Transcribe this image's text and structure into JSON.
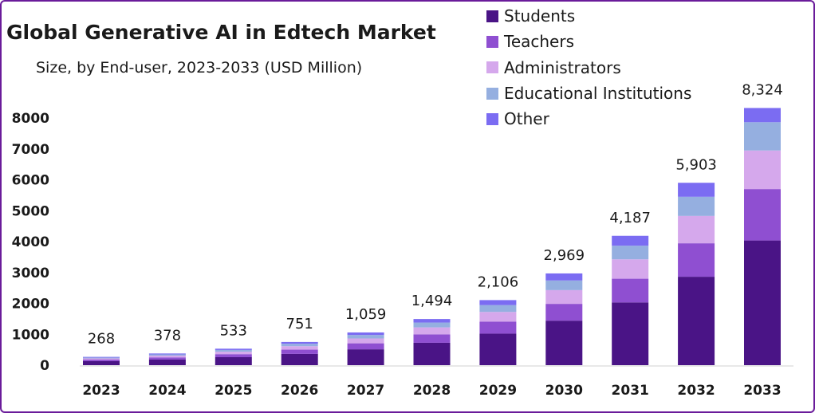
{
  "chart_data": {
    "type": "bar",
    "stacked": true,
    "title": "Global Generative AI in Edtech Market",
    "subtitle": "Size, by End-user, 2023-2033 (USD Million)",
    "categories": [
      "2023",
      "2024",
      "2025",
      "2026",
      "2027",
      "2028",
      "2029",
      "2030",
      "2031",
      "2032",
      "2033"
    ],
    "totals": [
      "268",
      "378",
      "533",
      "751",
      "1,059",
      "1,494",
      "2,106",
      "2,969",
      "4,187",
      "5,903",
      "8,324"
    ],
    "series": [
      {
        "name": "Students",
        "color": "#4a1486",
        "values": [
          130,
          183,
          258,
          364,
          513,
          724,
          1021,
          1440,
          2030,
          2862,
          4036
        ]
      },
      {
        "name": "Teachers",
        "color": "#8f4fd1",
        "values": [
          49,
          69,
          98,
          138,
          194,
          274,
          386,
          544,
          768,
          1083,
          1664
        ]
      },
      {
        "name": "Administrators",
        "color": "#d5a8ec",
        "values": [
          40,
          57,
          80,
          112,
          158,
          224,
          316,
          445,
          628,
          885,
          1248
        ]
      },
      {
        "name": "Educational Institutions",
        "color": "#95afe0",
        "values": [
          28,
          40,
          56,
          79,
          111,
          157,
          221,
          312,
          440,
          620,
          916
        ]
      },
      {
        "name": "Other",
        "color": "#7b6cf2",
        "values": [
          21,
          29,
          41,
          58,
          83,
          115,
          162,
          228,
          321,
          453,
          460
        ]
      }
    ],
    "yticks": [
      "0",
      "1000",
      "2000",
      "3000",
      "4000",
      "5000",
      "6000",
      "7000",
      "8000"
    ],
    "ylim": [
      0,
      8000
    ],
    "legend": "top-right",
    "grid": false
  }
}
